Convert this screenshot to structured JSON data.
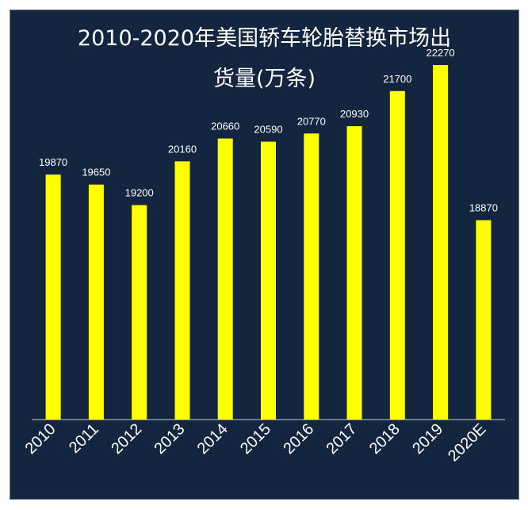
{
  "chart_data": {
    "type": "bar",
    "title": "2010-2020年美国轿车轮胎替换市场出货量(万条)",
    "title_lines": [
      "2010-2020年美国轿车轮胎替换市场出",
      "货量(万条)"
    ],
    "categories": [
      "2010",
      "2011",
      "2012",
      "2013",
      "2014",
      "2015",
      "2016",
      "2017",
      "2018",
      "2019",
      "2020E"
    ],
    "values": [
      19870,
      19650,
      19200,
      20160,
      20660,
      20590,
      20770,
      20930,
      21700,
      22270,
      18870
    ],
    "xlabel": "",
    "ylabel": "",
    "ylim": [
      14500,
      23000
    ],
    "grid": false,
    "legend": "none",
    "colors": {
      "background": "#13253f",
      "bar": "#ffff00",
      "text": "#ffffff",
      "axis": "#c8cdd4"
    }
  }
}
